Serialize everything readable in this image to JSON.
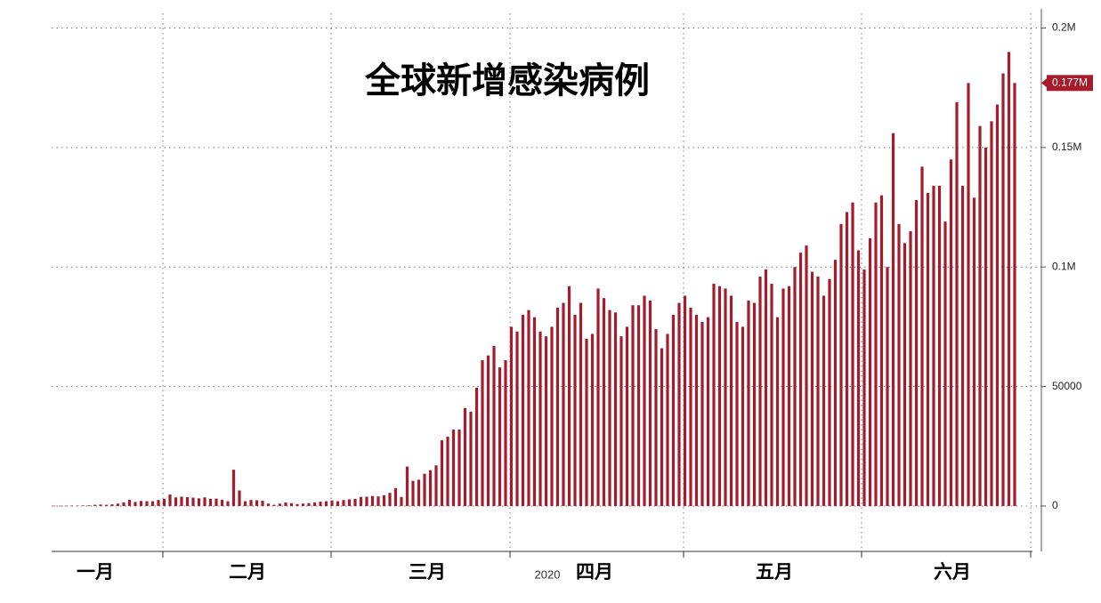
{
  "chart_data": {
    "type": "bar",
    "title": "全球新增感染病例",
    "xlabel": "2020",
    "month_labels": [
      "一月",
      "二月",
      "三月",
      "四月",
      "五月",
      "六月"
    ],
    "color": "#a51d2d",
    "values": [
      100,
      100,
      100,
      150,
      150,
      200,
      300,
      500,
      600,
      500,
      700,
      1000,
      1500,
      2600,
      1700,
      2100,
      2000,
      2000,
      2500,
      3000,
      4800,
      3600,
      3900,
      3700,
      3500,
      3200,
      3600,
      3000,
      3100,
      2600,
      2000,
      15200,
      6500,
      2000,
      2500,
      2400,
      2200,
      1000,
      500,
      1000,
      1500,
      1200,
      800,
      1000,
      1200,
      1500,
      1800,
      2000,
      2300,
      2000,
      2500,
      2800,
      3000,
      3800,
      3900,
      4200,
      4000,
      4500,
      5500,
      7500,
      3800,
      16500,
      10500,
      11000,
      13500,
      15000,
      17000,
      27500,
      29000,
      32000,
      32000,
      41000,
      39500,
      49500,
      61000,
      63000,
      67000,
      58000,
      61000,
      75000,
      73000,
      80000,
      82000,
      79000,
      73000,
      71000,
      75000,
      83000,
      85000,
      92000,
      80000,
      85000,
      70000,
      72000,
      91000,
      87000,
      82000,
      81000,
      71000,
      75000,
      84000,
      84000,
      88000,
      86000,
      74000,
      66000,
      72000,
      80000,
      85000,
      88000,
      83000,
      80000,
      77000,
      79000,
      93000,
      92000,
      91000,
      88000,
      77000,
      75000,
      86000,
      85000,
      96000,
      99000,
      93000,
      79000,
      91000,
      92000,
      100000,
      106000,
      109000,
      98000,
      96000,
      88000,
      95000,
      103000,
      118000,
      123000,
      127000,
      107000,
      99000,
      112000,
      127000,
      130000,
      100000,
      156000,
      118000,
      110000,
      115000,
      128000,
      142000,
      131000,
      134000,
      134000,
      119000,
      145000,
      169000,
      134000,
      177000,
      129000,
      159000,
      150000,
      161000,
      168000,
      181000,
      190000,
      177000
    ],
    "value_label": "0.177M",
    "ylim": [
      -19000,
      208000
    ],
    "yticks": [
      0,
      50000,
      {
        "value": 100000,
        "label": "0.1M"
      },
      {
        "value": 150000,
        "label": "0.15M"
      },
      {
        "value": 200000,
        "label": "0.2M"
      }
    ],
    "grid": true
  }
}
